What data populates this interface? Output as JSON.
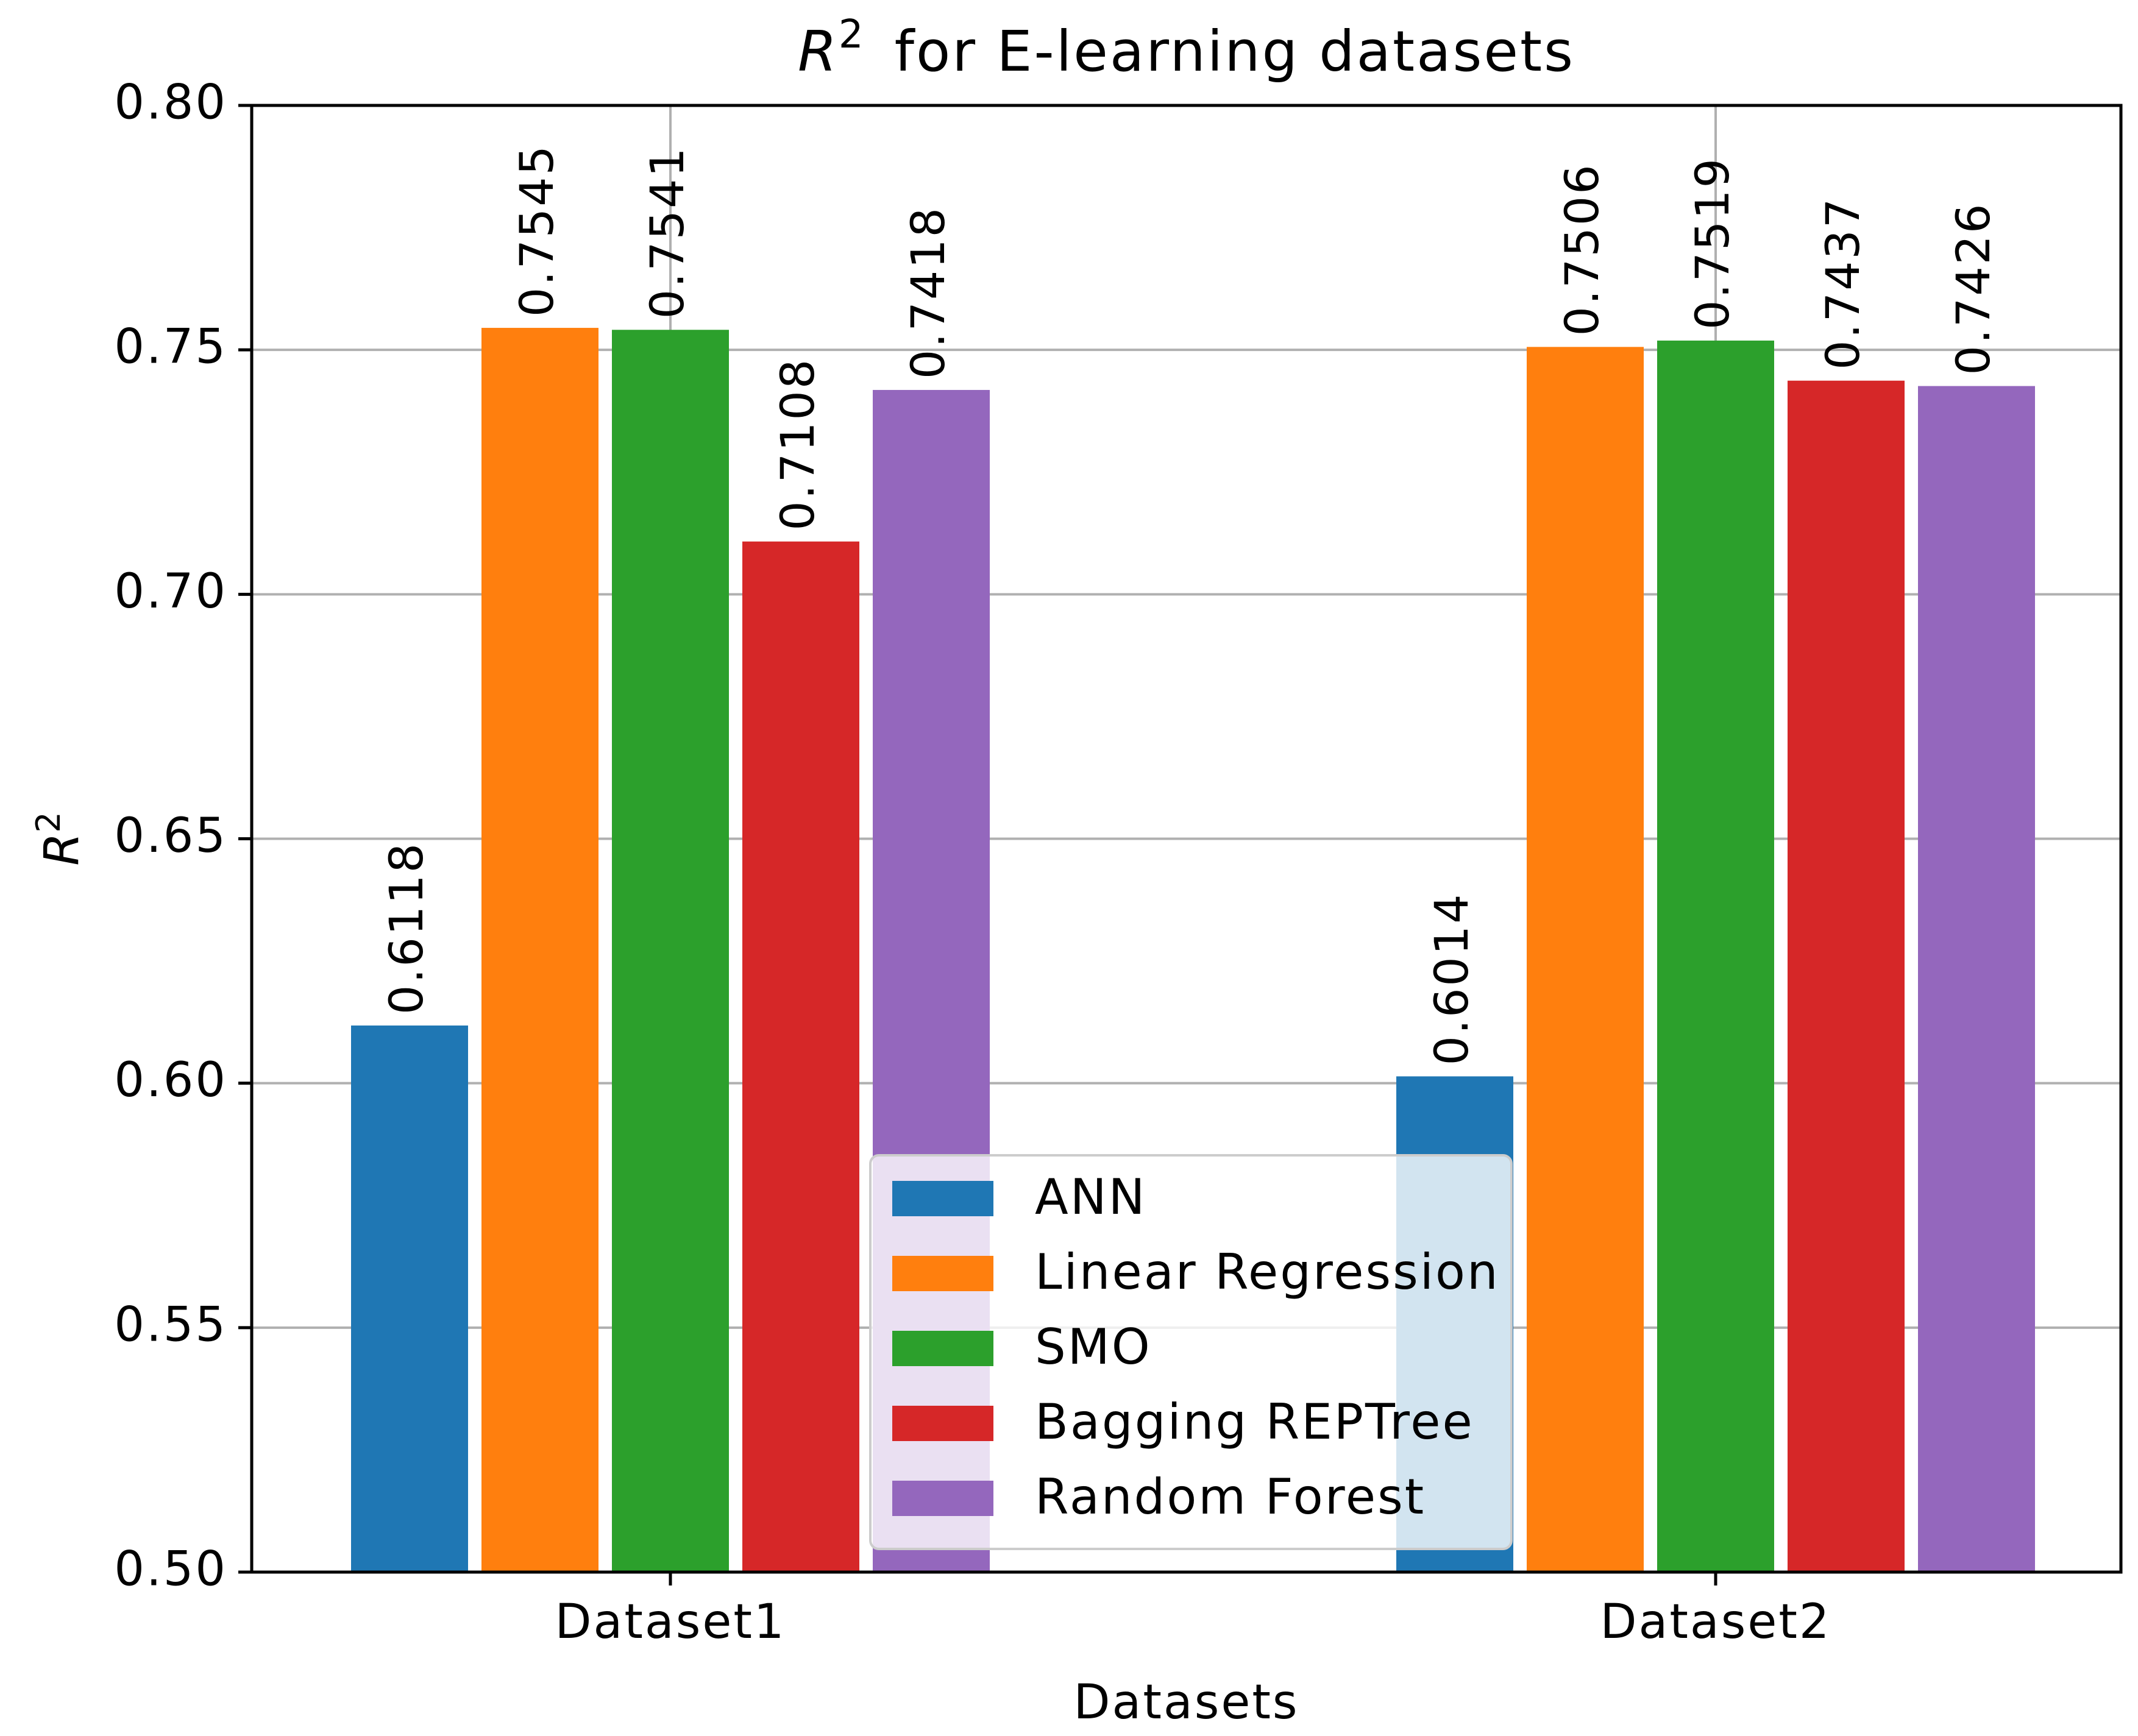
{
  "chart_data": {
    "type": "bar",
    "title": "for E-learning datasets",
    "title_math_symbol": "R",
    "title_math_superscript": "2",
    "xlabel": "Datasets",
    "ylabel_symbol": "R",
    "ylabel_superscript": "2",
    "categories": [
      "Dataset1",
      "Dataset2"
    ],
    "ylim": [
      0.5,
      0.8
    ],
    "yticks": [
      "0.50",
      "0.55",
      "0.60",
      "0.65",
      "0.70",
      "0.75",
      "0.80"
    ],
    "grid": true,
    "legend_position": "lower-center",
    "series": [
      {
        "name": "ANN",
        "color": "#1f77b4",
        "values": [
          0.6118,
          0.6014
        ],
        "labels": [
          "0.6118",
          "0.6014"
        ]
      },
      {
        "name": "Linear Regression",
        "color": "#ff7f0e",
        "values": [
          0.7545,
          0.7506
        ],
        "labels": [
          "0.7545",
          "0.7506"
        ]
      },
      {
        "name": "SMO",
        "color": "#2ca02c",
        "values": [
          0.7541,
          0.7519
        ],
        "labels": [
          "0.7541",
          "0.7519"
        ]
      },
      {
        "name": "Bagging REPTree",
        "color": "#d62728",
        "values": [
          0.7108,
          0.7437
        ],
        "labels": [
          "0.7108",
          "0.7437"
        ]
      },
      {
        "name": "Random Forest",
        "color": "#9467bd",
        "values": [
          0.7418,
          0.7426
        ],
        "labels": [
          "0.7418",
          "0.7426"
        ]
      }
    ]
  }
}
